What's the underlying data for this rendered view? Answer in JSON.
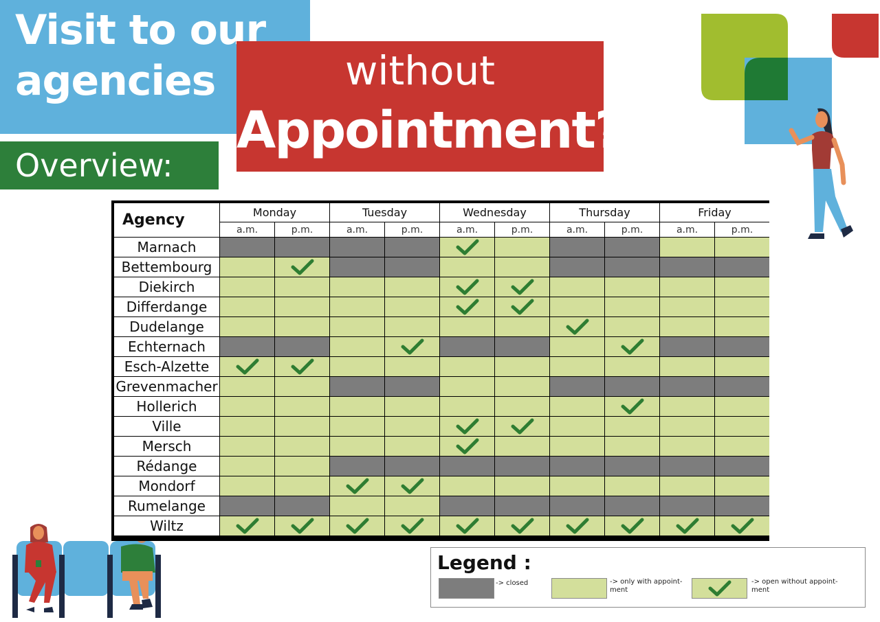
{
  "header": {
    "title_line1": "Visit to our",
    "title_line2": "agencies",
    "subtitle_top": "without",
    "subtitle_bottom": "Appointment?",
    "section_label": "Overview:"
  },
  "colors": {
    "title_blue": "#5fb1dc",
    "title_red": "#c73630",
    "title_green": "#2d7f3a",
    "closed": "#7d7d7d",
    "appointment": "#d3df9b",
    "check": "#2e7d32"
  },
  "table": {
    "agency_header": "Agency",
    "days": [
      "Monday",
      "Tuesday",
      "Wednesday",
      "Thursday",
      "Friday"
    ],
    "periods": [
      "a.m.",
      "p.m."
    ],
    "rows": [
      {
        "agency": "Marnach",
        "slots": [
          "closed",
          "closed",
          "closed",
          "closed",
          "open",
          "appointment",
          "closed",
          "closed",
          "appointment",
          "appointment"
        ]
      },
      {
        "agency": "Bettembourg",
        "slots": [
          "appointment",
          "open",
          "closed",
          "closed",
          "appointment",
          "appointment",
          "closed",
          "closed",
          "closed",
          "closed"
        ]
      },
      {
        "agency": "Diekirch",
        "slots": [
          "appointment",
          "appointment",
          "appointment",
          "appointment",
          "open",
          "open",
          "appointment",
          "appointment",
          "appointment",
          "appointment"
        ]
      },
      {
        "agency": "Differdange",
        "slots": [
          "appointment",
          "appointment",
          "appointment",
          "appointment",
          "open",
          "open",
          "appointment",
          "appointment",
          "appointment",
          "appointment"
        ]
      },
      {
        "agency": "Dudelange",
        "slots": [
          "appointment",
          "appointment",
          "appointment",
          "appointment",
          "appointment",
          "appointment",
          "open",
          "appointment",
          "appointment",
          "appointment"
        ]
      },
      {
        "agency": "Echternach",
        "slots": [
          "closed",
          "closed",
          "appointment",
          "open",
          "closed",
          "closed",
          "appointment",
          "open",
          "closed",
          "closed"
        ]
      },
      {
        "agency": "Esch-Alzette",
        "slots": [
          "open",
          "open",
          "appointment",
          "appointment",
          "appointment",
          "appointment",
          "appointment",
          "appointment",
          "appointment",
          "appointment"
        ]
      },
      {
        "agency": "Grevenmacher",
        "slots": [
          "appointment",
          "appointment",
          "closed",
          "closed",
          "appointment",
          "appointment",
          "closed",
          "closed",
          "closed",
          "closed"
        ]
      },
      {
        "agency": "Hollerich",
        "slots": [
          "appointment",
          "appointment",
          "appointment",
          "appointment",
          "appointment",
          "appointment",
          "appointment",
          "open",
          "appointment",
          "appointment"
        ]
      },
      {
        "agency": "Ville",
        "slots": [
          "appointment",
          "appointment",
          "appointment",
          "appointment",
          "open",
          "open",
          "appointment",
          "appointment",
          "appointment",
          "appointment"
        ]
      },
      {
        "agency": "Mersch",
        "slots": [
          "appointment",
          "appointment",
          "appointment",
          "appointment",
          "open",
          "appointment",
          "appointment",
          "appointment",
          "appointment",
          "appointment"
        ]
      },
      {
        "agency": "Rédange",
        "slots": [
          "appointment",
          "appointment",
          "closed",
          "closed",
          "closed",
          "closed",
          "closed",
          "closed",
          "closed",
          "closed"
        ]
      },
      {
        "agency": "Mondorf",
        "slots": [
          "appointment",
          "appointment",
          "open",
          "open",
          "appointment",
          "appointment",
          "appointment",
          "appointment",
          "appointment",
          "appointment"
        ]
      },
      {
        "agency": "Rumelange",
        "slots": [
          "closed",
          "closed",
          "appointment",
          "appointment",
          "closed",
          "closed",
          "closed",
          "closed",
          "closed",
          "closed"
        ]
      },
      {
        "agency": "Wiltz",
        "slots": [
          "open",
          "open",
          "open",
          "open",
          "open",
          "open",
          "open",
          "open",
          "open",
          "open"
        ]
      }
    ]
  },
  "legend": {
    "title": "Legend :",
    "closed": "-> closed",
    "appointment": "-> only with appoint-ment",
    "open": "-> open without appoint-ment"
  }
}
